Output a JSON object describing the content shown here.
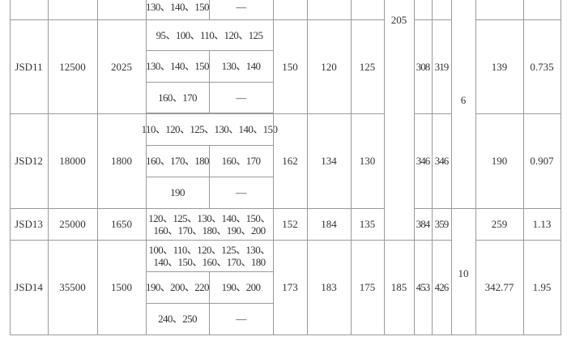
{
  "top_partial": {
    "dia_a": "130、140、150",
    "dia_b": "—",
    "width_205": "205",
    "col_6": "6"
  },
  "rows": [
    {
      "model": "JSD11",
      "torque": "12500",
      "speed": "2025",
      "dia_full": "95、100、110、120、125",
      "dia_a2": "130、140、150",
      "dia_b2": "130、140",
      "dia_a3": "160、170",
      "dia_b3": "—",
      "d1": "150",
      "d2": "120",
      "d3": "125",
      "l1": "308",
      "l2": "319",
      "mass_inertia": "139",
      "last": "0.735"
    },
    {
      "model": "JSD12",
      "torque": "18000",
      "speed": "1800",
      "dia_full": "110、120、125、130、140、150",
      "dia_a2": "160、170、180",
      "dia_b2": "160、170",
      "dia_a3": "190",
      "dia_b3": "—",
      "d1": "162",
      "d2": "134",
      "d3": "130",
      "l1": "346",
      "l2": "346",
      "mass_inertia": "190",
      "last": "0.907"
    },
    {
      "model": "JSD13",
      "torque": "25000",
      "speed": "1650",
      "dia_full": "120、125、130、140、150、\n160、170、180、190、200",
      "d1": "152",
      "d2": "184",
      "d3": "135",
      "l1": "384",
      "l2": "359",
      "mass_inertia": "259",
      "last": "1.13"
    },
    {
      "model": "JSD14",
      "torque": "35500",
      "speed": "1500",
      "dia_full": "100、110、120、125、130、\n140、150、160、170、180",
      "dia_a2": "190、200、220",
      "dia_b2": "190、200",
      "dia_a3": "240、250",
      "dia_b3": "—",
      "d1": "173",
      "d2": "183",
      "d3": "175",
      "width": "185",
      "l1": "453",
      "l2": "426",
      "mass_inertia": "342.77",
      "last": "1.95"
    }
  ],
  "col_10": "10"
}
